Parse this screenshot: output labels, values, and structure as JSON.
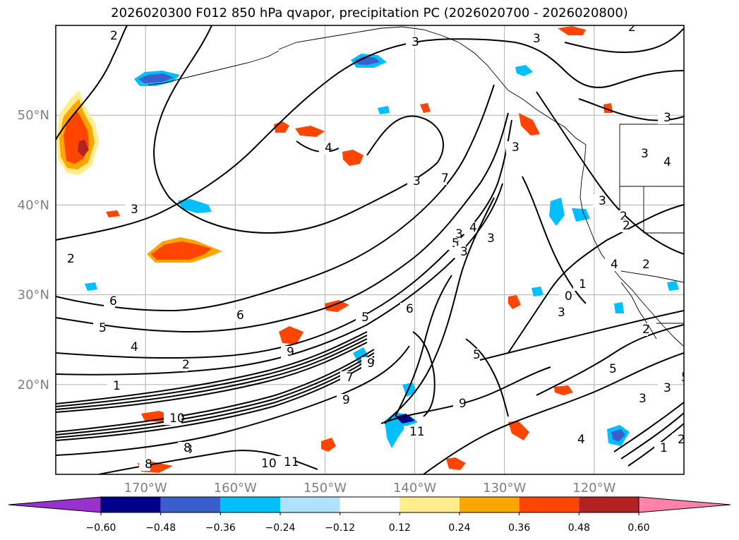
{
  "chart_data": {
    "type": "map-contour",
    "title": "2026020300 F012 850 hPa qvapor, precipitation PC (2026020700 - 2026020800)",
    "lat_ticks": [
      "50°N",
      "40°N",
      "30°N",
      "20°N"
    ],
    "lat_values": [
      50,
      40,
      30,
      20
    ],
    "lon_ticks": [
      "170°W",
      "160°W",
      "150°W",
      "140°W",
      "130°W",
      "120°W"
    ],
    "lon_values": [
      -170,
      -160,
      -150,
      -140,
      -130,
      -120
    ],
    "lon_range": [
      -180,
      -110
    ],
    "lat_range": [
      10,
      60
    ],
    "grid": true,
    "contour_field": "850 hPa qvapor",
    "contour_labels": [
      "2",
      "2",
      "3",
      "3",
      "4",
      "3",
      "3",
      "3",
      "5",
      "3",
      "4",
      "3",
      "6",
      "5",
      "4",
      "2",
      "6",
      "6",
      "5",
      "5",
      "9",
      "11",
      "9",
      "10",
      "8",
      "8",
      "9",
      "10",
      "11",
      "3",
      "4",
      "5",
      "3",
      "1",
      "2",
      "2",
      "3",
      "3",
      "4",
      "3",
      "7",
      "3",
      "2",
      "1",
      "2",
      "5",
      "2",
      "3",
      "3",
      "4",
      "9",
      "8",
      "10",
      "7",
      "1",
      "0",
      "2"
    ],
    "colorbar": {
      "levels": [
        "-0.60",
        "-0.48",
        "-0.36",
        "-0.24",
        "-0.12",
        "0.12",
        "0.24",
        "0.36",
        "0.48",
        "0.60"
      ],
      "colors": [
        "#9932CC",
        "#00008B",
        "#3A5FCD",
        "#00BFFF",
        "#B0E2FF",
        "#FFFFFF",
        "#FFEC8B",
        "#FFA500",
        "#FF4500",
        "#B22222",
        "#FF82AB"
      ],
      "extend": "both"
    }
  }
}
